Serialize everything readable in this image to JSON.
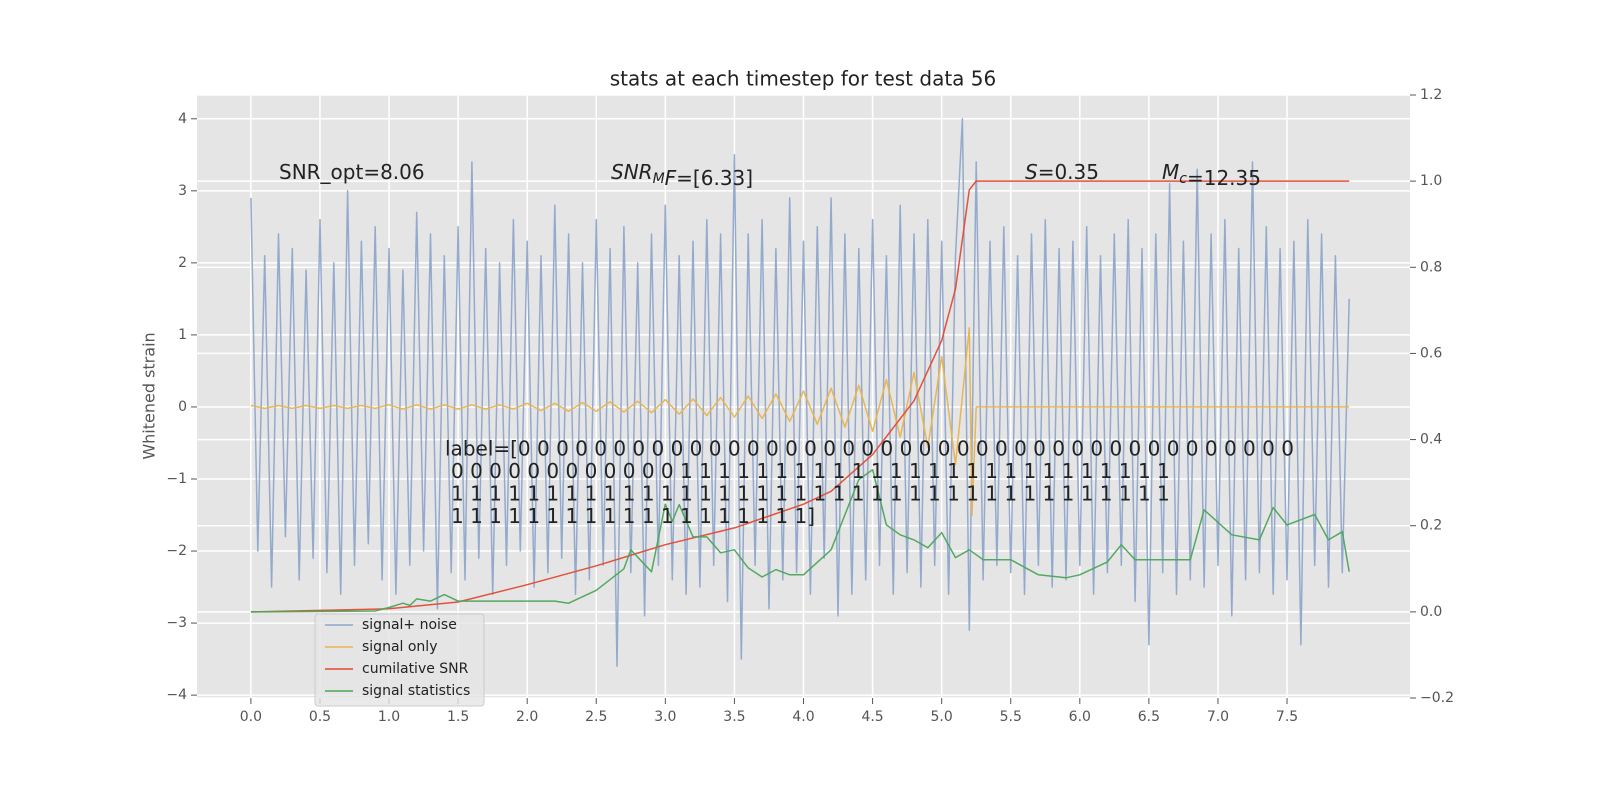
{
  "chart_data": {
    "type": "line",
    "title": "stats at each timestep for test data 56",
    "ylabel": "Whitened strain",
    "xlim": [
      -0.39,
      8.39
    ],
    "ylim": [
      -4.04,
      4.33
    ],
    "y2lim": [
      -0.2,
      1.2
    ],
    "xticks": [
      {
        "value": 0,
        "label": "0.0"
      },
      0.5,
      {
        "value": 1,
        "label": "1.0"
      },
      1.5,
      {
        "value": 2,
        "label": "2.0"
      },
      2.5,
      {
        "value": 3,
        "label": "3.0"
      },
      3.5,
      {
        "value": 4,
        "label": "4.0"
      },
      4.5,
      {
        "value": 5,
        "label": "5.0"
      },
      5.5,
      {
        "value": 6,
        "label": "6.0"
      },
      6.5,
      {
        "value": 7,
        "label": "7.0"
      },
      7.5
    ],
    "yticks": [
      {
        "value": -4,
        "label": "−4"
      },
      {
        "value": -3,
        "label": "−3"
      },
      {
        "value": -2,
        "label": "−2"
      },
      {
        "value": -1,
        "label": "−1"
      },
      0,
      1,
      2,
      3,
      4
    ],
    "y2ticks": [
      {
        "value": -0.2,
        "label": "−0.2"
      },
      {
        "value": 0,
        "label": "0.0"
      },
      0.2,
      0.4,
      0.6,
      0.8,
      {
        "value": 1,
        "label": "1.0"
      },
      1.2
    ],
    "grid": true,
    "legend": "lower left",
    "annotations": [
      {
        "text": "SNR_opt=8.06"
      },
      {
        "italic": "SNR",
        "sub": "M",
        "italic2": "F",
        "text": "=[6.33]"
      },
      {
        "italic": "S",
        "text": "=0.35"
      },
      {
        "italic": "M",
        "sub": "c",
        "text": "=12.35"
      }
    ],
    "label_text": [
      "label=[0 0 0 0 0 0 0 0 0 0 0 0 0 0 0 0 0 0 0 0 0 0 0 0 0 0 0 0 0 0 0 0 0 0 0 0 0 0 0 0 0",
      "0 0 0 0 0 0 0 0 0 0 0 0 1 1 1 1 1 1 1 1 1 1 1 1 1 1 1 1 1 1 1 1 1 1 1 1 1 1",
      "1 1 1 1 1 1 1 1 1 1 1 1 1 1 1 1 1 1 1 1 1 1 1 1 1 1 1 1 1 1 1 1 1 1 1 1 1 1",
      "1 1 1 1 1 1 1 1 1 1 1 1 1 1 1 1 1 1 1]"
    ],
    "series": [
      {
        "name": "signal+ noise",
        "color": "#8fa6cb",
        "x": [
          0,
          0.05,
          0.1,
          0.15,
          0.2,
          0.25,
          0.3,
          0.35,
          0.4,
          0.45,
          0.5,
          0.55,
          0.6,
          0.65,
          0.7,
          0.75,
          0.8,
          0.85,
          0.9,
          0.95,
          1,
          1.05,
          1.1,
          1.15,
          1.2,
          1.25,
          1.3,
          1.35,
          1.4,
          1.45,
          1.5,
          1.55,
          1.6,
          1.65,
          1.7,
          1.75,
          1.8,
          1.85,
          1.9,
          1.95,
          2,
          2.05,
          2.1,
          2.15,
          2.2,
          2.25,
          2.3,
          2.35,
          2.4,
          2.45,
          2.5,
          2.55,
          2.6,
          2.65,
          2.7,
          2.75,
          2.8,
          2.85,
          2.9,
          2.95,
          3,
          3.05,
          3.1,
          3.15,
          3.2,
          3.25,
          3.3,
          3.35,
          3.4,
          3.45,
          3.5,
          3.55,
          3.6,
          3.65,
          3.7,
          3.75,
          3.8,
          3.85,
          3.9,
          3.95,
          4,
          4.05,
          4.1,
          4.15,
          4.2,
          4.25,
          4.3,
          4.35,
          4.4,
          4.45,
          4.5,
          4.55,
          4.6,
          4.65,
          4.7,
          4.75,
          4.8,
          4.85,
          4.9,
          4.95,
          5,
          5.05,
          5.1,
          5.15,
          5.2,
          5.25,
          5.3,
          5.35,
          5.4,
          5.45,
          5.5,
          5.55,
          5.6,
          5.65,
          5.7,
          5.75,
          5.8,
          5.85,
          5.9,
          5.95,
          6,
          6.05,
          6.1,
          6.15,
          6.2,
          6.25,
          6.3,
          6.35,
          6.4,
          6.45,
          6.5,
          6.55,
          6.6,
          6.65,
          6.7,
          6.75,
          6.8,
          6.85,
          6.9,
          6.95,
          7,
          7.05,
          7.1,
          7.15,
          7.2,
          7.25,
          7.3,
          7.35,
          7.4,
          7.45,
          7.5,
          7.55,
          7.6,
          7.65,
          7.7,
          7.75,
          7.8,
          7.85,
          7.9,
          7.95
        ],
        "values": [
          2.9,
          -2.0,
          2.1,
          -2.5,
          2.4,
          -1.8,
          2.2,
          -2.4,
          1.9,
          -2.1,
          2.6,
          -2.3,
          2.0,
          -2.6,
          3.0,
          -2.2,
          2.3,
          -1.9,
          2.5,
          -2.4,
          2.2,
          -2.6,
          1.9,
          -2.2,
          2.7,
          -2.0,
          2.4,
          -2.8,
          2.1,
          -2.3,
          2.5,
          -2.4,
          3.4,
          -2.1,
          2.2,
          -2.6,
          2.0,
          -2.2,
          2.6,
          -2.0,
          2.3,
          -2.5,
          2.1,
          -2.3,
          2.8,
          -2.1,
          2.4,
          -2.6,
          2.0,
          -2.4,
          2.6,
          -2.2,
          2.2,
          -3.6,
          2.5,
          -2.3,
          2.0,
          -2.9,
          2.4,
          -2.2,
          2.8,
          -2.4,
          2.1,
          -2.6,
          2.3,
          -2.5,
          2.6,
          -2.2,
          2.4,
          -2.7,
          3.5,
          -3.5,
          2.4,
          -2.2,
          2.6,
          -2.8,
          2.2,
          -2.4,
          2.9,
          -2.3,
          2.3,
          -2.6,
          2.5,
          -2.1,
          2.9,
          -2.9,
          2.4,
          -2.6,
          2.2,
          -2.4,
          2.6,
          -2.2,
          2.1,
          -2.6,
          2.8,
          -2.3,
          2.4,
          -2.5,
          2.6,
          -2.2,
          2.3,
          -2.6,
          2.1,
          4.0,
          -3.1,
          3.4,
          -2.4,
          2.3,
          -2.2,
          2.5,
          -2.3,
          2.1,
          -2.6,
          2.4,
          -2.2,
          2.6,
          -2.5,
          2.2,
          -2.4,
          2.3,
          -2.2,
          2.5,
          -2.6,
          2.1,
          -2.3,
          2.4,
          -2.2,
          2.6,
          -2.7,
          2.2,
          -3.3,
          2.4,
          -2.3,
          3.1,
          -2.6,
          2.3,
          -2.4,
          3.3,
          -2.5,
          2.4,
          -2.2,
          2.6,
          -2.9,
          2.2,
          -2.4,
          3.4,
          -2.3,
          2.5,
          -2.6,
          2.2,
          -2.4,
          2.3,
          -3.3,
          2.6,
          -2.2,
          2.4,
          -2.5,
          2.1,
          -2.3,
          1.5
        ]
      },
      {
        "name": "signal only",
        "color": "#e8b34f",
        "x": [
          0,
          0.1,
          0.2,
          0.3,
          0.4,
          0.5,
          0.6,
          0.7,
          0.8,
          0.9,
          1,
          1.1,
          1.2,
          1.3,
          1.4,
          1.5,
          1.6,
          1.7,
          1.8,
          1.9,
          2,
          2.1,
          2.2,
          2.3,
          2.4,
          2.5,
          2.6,
          2.7,
          2.8,
          2.9,
          3,
          3.1,
          3.2,
          3.3,
          3.4,
          3.5,
          3.6,
          3.7,
          3.8,
          3.9,
          4,
          4.1,
          4.2,
          4.3,
          4.4,
          4.5,
          4.6,
          4.7,
          4.8,
          4.9,
          5,
          5.1,
          5.2,
          5.22,
          5.25,
          7.95
        ],
        "values": [
          0.02,
          -0.02,
          0.02,
          -0.02,
          0.02,
          -0.02,
          0.02,
          -0.02,
          0.02,
          -0.02,
          0.03,
          -0.03,
          0.03,
          -0.03,
          0.03,
          -0.03,
          0.03,
          -0.03,
          0.03,
          -0.03,
          0.05,
          -0.05,
          0.05,
          -0.06,
          0.06,
          -0.06,
          0.07,
          -0.07,
          0.08,
          -0.08,
          0.1,
          -0.1,
          0.11,
          -0.12,
          0.13,
          -0.14,
          0.15,
          -0.16,
          0.18,
          -0.2,
          0.22,
          -0.24,
          0.26,
          -0.28,
          0.3,
          -0.34,
          0.38,
          -0.42,
          0.48,
          -0.56,
          0.7,
          -0.8,
          1.1,
          -1.5,
          0,
          0
        ]
      },
      {
        "name": "cumilative SNR",
        "color": "#e24a33",
        "axis": "y2",
        "x": [
          0,
          1,
          1.5,
          2,
          2.5,
          3,
          3.5,
          4,
          4.2,
          4.5,
          4.8,
          5,
          5.1,
          5.2,
          5.25,
          7.95
        ],
        "values": [
          0,
          0.007,
          0.023,
          0.063,
          0.107,
          0.156,
          0.195,
          0.25,
          0.28,
          0.365,
          0.49,
          0.63,
          0.75,
          0.98,
          1,
          1
        ]
      },
      {
        "name": "signal statistics",
        "color": "#4ca55a",
        "axis": "y2",
        "x": [
          0,
          0.9,
          1,
          1.1,
          1.15,
          1.2,
          1.3,
          1.4,
          1.5,
          1.7,
          2,
          2.2,
          2.3,
          2.5,
          2.7,
          2.75,
          2.9,
          3,
          3.05,
          3.1,
          3.2,
          3.3,
          3.4,
          3.5,
          3.6,
          3.7,
          3.8,
          3.9,
          4,
          4.2,
          4.4,
          4.5,
          4.6,
          4.7,
          4.8,
          4.9,
          5,
          5.1,
          5.2,
          5.3,
          5.5,
          5.7,
          5.9,
          6,
          6.2,
          6.3,
          6.4,
          6.6,
          6.8,
          6.9,
          7.1,
          7.3,
          7.4,
          7.5,
          7.7,
          7.8,
          7.9,
          7.95
        ],
        "values": [
          0,
          0.002,
          0.01,
          0.02,
          0.015,
          0.03,
          0.025,
          0.04,
          0.025,
          0.025,
          0.025,
          0.025,
          0.02,
          0.05,
          0.1,
          0.144,
          0.093,
          0.25,
          0.21,
          0.249,
          0.174,
          0.174,
          0.137,
          0.144,
          0.102,
          0.081,
          0.098,
          0.086,
          0.086,
          0.144,
          0.307,
          0.33,
          0.202,
          0.179,
          0.167,
          0.149,
          0.184,
          0.126,
          0.144,
          0.121,
          0.121,
          0.086,
          0.079,
          0.086,
          0.116,
          0.156,
          0.121,
          0.121,
          0.121,
          0.237,
          0.179,
          0.167,
          0.242,
          0.202,
          0.226,
          0.167,
          0.186,
          0.093
        ]
      }
    ]
  }
}
